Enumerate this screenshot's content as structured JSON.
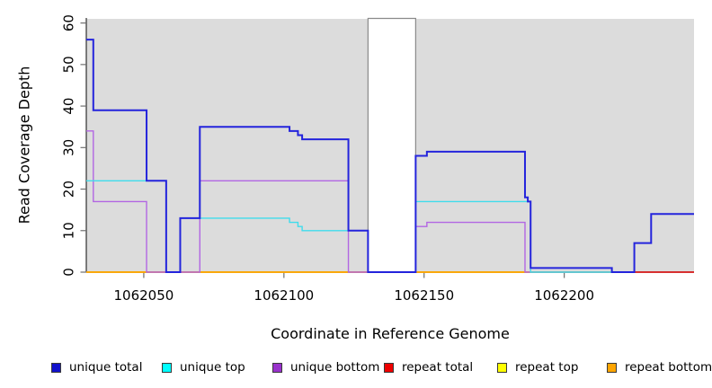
{
  "chart_data": {
    "type": "line",
    "subtype": "step-coverage-plot",
    "title": "",
    "xlabel": "Coordinate in Reference Genome",
    "ylabel": "Read Coverage Depth",
    "xlim": [
      1062029.5,
      1062246.3
    ],
    "ylim": [
      0,
      61
    ],
    "x_ticks": [
      1062050,
      1062100,
      1062150,
      1062200
    ],
    "y_ticks": [
      0,
      10,
      20,
      30,
      40,
      50,
      60
    ],
    "grid": "off",
    "plot_bg_color": "#DCDCDC",
    "axis_color": "#2e2e2e",
    "tick_color": "#6f6f6f",
    "mask_region": {
      "start": 1062130,
      "end": 1062147,
      "fill": "#FFFFFF",
      "border": "#8a8a8a"
    },
    "series": [
      {
        "name": "repeat total",
        "color": "#E00000",
        "width": 1.4,
        "end": 1062246.3,
        "steps": [
          [
            1062029.5,
            0
          ]
        ]
      },
      {
        "name": "repeat top",
        "color": "#FFFF00",
        "width": 1.4,
        "end": 1062225,
        "steps": [
          [
            1062029.5,
            0
          ]
        ]
      },
      {
        "name": "repeat bottom",
        "color": "#FFA500",
        "width": 1.6,
        "end": 1062225,
        "steps": [
          [
            1062029.5,
            0
          ]
        ]
      },
      {
        "name": "unique bottom",
        "color": "#B266E3",
        "width": 1.4,
        "end": 1062225,
        "steps": [
          [
            1062029.5,
            34
          ],
          [
            1062032,
            17
          ],
          [
            1062051,
            0
          ],
          [
            1062070,
            22
          ],
          [
            1062123,
            0
          ],
          [
            1062147,
            11
          ],
          [
            1062151,
            12
          ],
          [
            1062186,
            0
          ]
        ]
      },
      {
        "name": "unique top",
        "color": "#3FDCEC",
        "width": 1.4,
        "end": 1062225,
        "steps": [
          [
            1062029.5,
            22
          ],
          [
            1062058,
            0
          ],
          [
            1062063,
            13
          ],
          [
            1062102,
            12
          ],
          [
            1062105,
            11
          ],
          [
            1062106.5,
            10
          ],
          [
            1062130,
            0
          ],
          [
            1062147,
            17
          ],
          [
            1062188,
            0
          ]
        ]
      },
      {
        "name": "unique total",
        "color": "#2424DC",
        "width": 2,
        "end": 1062246.3,
        "steps": [
          [
            1062029.5,
            56
          ],
          [
            1062032,
            39
          ],
          [
            1062051,
            22
          ],
          [
            1062058,
            0
          ],
          [
            1062063,
            13
          ],
          [
            1062070,
            35
          ],
          [
            1062102,
            34
          ],
          [
            1062105,
            33
          ],
          [
            1062106.5,
            32
          ],
          [
            1062123,
            10
          ],
          [
            1062130,
            0
          ],
          [
            1062147,
            28
          ],
          [
            1062151,
            29
          ],
          [
            1062186,
            18
          ],
          [
            1062187,
            17
          ],
          [
            1062188,
            1
          ],
          [
            1062217,
            0
          ],
          [
            1062225,
            7
          ],
          [
            1062231,
            14
          ]
        ]
      }
    ],
    "legend": [
      {
        "label": "unique total",
        "color": "#1111CC"
      },
      {
        "label": "unique top",
        "color": "#00FFFF"
      },
      {
        "label": "unique bottom",
        "color": "#9932CC"
      },
      {
        "label": "repeat total",
        "color": "#EE0000"
      },
      {
        "label": "repeat top",
        "color": "#FFFF00"
      },
      {
        "label": "repeat bottom",
        "color": "#FFA500"
      }
    ],
    "legend_position": "bottom"
  }
}
